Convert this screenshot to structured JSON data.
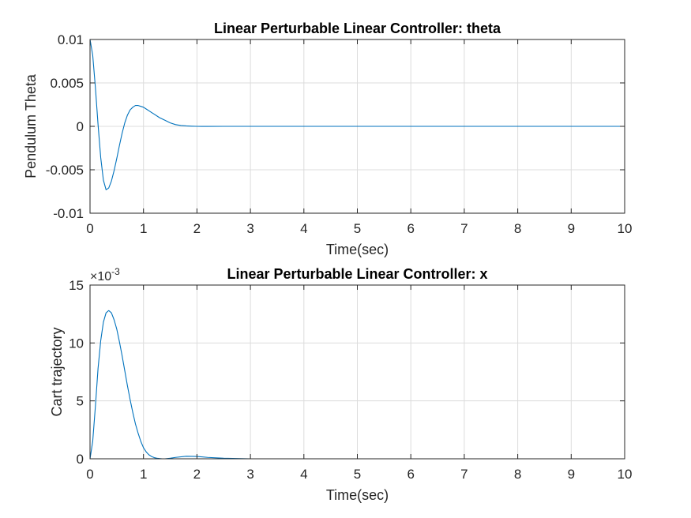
{
  "chart_data": [
    {
      "type": "line",
      "title": "Linear Perturbable Linear Controller: theta",
      "xlabel": "Time(sec)",
      "ylabel": "Pendulum Theta",
      "xlim": [
        0,
        10
      ],
      "ylim": [
        -0.01,
        0.01
      ],
      "xticks": [
        0,
        1,
        2,
        3,
        4,
        5,
        6,
        7,
        8,
        9,
        10
      ],
      "xtick_labels": [
        "0",
        "1",
        "2",
        "3",
        "4",
        "5",
        "6",
        "7",
        "8",
        "9",
        "10"
      ],
      "yticks": [
        -0.01,
        -0.005,
        0,
        0.005,
        0.01
      ],
      "ytick_labels": [
        "-0.01",
        "-0.005",
        "0",
        "0.005",
        "0.01"
      ],
      "exponent_label": "",
      "grid": true,
      "color": "#0072BD",
      "series": [
        {
          "x": [
            0,
            0.05,
            0.1,
            0.15,
            0.2,
            0.25,
            0.3,
            0.35,
            0.4,
            0.45,
            0.5,
            0.55,
            0.6,
            0.65,
            0.7,
            0.75,
            0.8,
            0.85,
            0.9,
            0.95,
            1.0,
            1.05,
            1.1,
            1.15,
            1.2,
            1.3,
            1.4,
            1.5,
            1.6,
            1.7,
            1.8,
            1.9,
            2.0,
            2.2,
            2.5,
            3,
            4,
            5,
            6,
            7,
            8,
            9,
            10
          ],
          "y": [
            0.01,
            0.0082,
            0.0045,
            0.0002,
            -0.0036,
            -0.0062,
            -0.0073,
            -0.0071,
            -0.0063,
            -0.0051,
            -0.0037,
            -0.0022,
            -0.0008,
            0.0004,
            0.0013,
            0.0019,
            0.0022,
            0.0024,
            0.0024,
            0.0023,
            0.0022,
            0.002,
            0.0018,
            0.0016,
            0.0014,
            0.001,
            0.0007,
            0.0004,
            0.0002,
            0.0001,
            5e-05,
            2e-05,
            0.0,
            -1e-05,
            0.0,
            0.0,
            0.0,
            0.0,
            0.0,
            0.0,
            0.0,
            0.0,
            0.0
          ]
        }
      ]
    },
    {
      "type": "line",
      "title": "Linear Perturbable Linear Controller: x",
      "xlabel": "Time(sec)",
      "ylabel": "Cart trajectory",
      "xlim": [
        0,
        10
      ],
      "ylim": [
        0,
        15
      ],
      "xticks": [
        0,
        1,
        2,
        3,
        4,
        5,
        6,
        7,
        8,
        9,
        10
      ],
      "xtick_labels": [
        "0",
        "1",
        "2",
        "3",
        "4",
        "5",
        "6",
        "7",
        "8",
        "9",
        "10"
      ],
      "yticks": [
        0,
        5,
        10,
        15
      ],
      "ytick_labels": [
        "0",
        "5",
        "10",
        "15"
      ],
      "exponent_label": "×10",
      "exponent_power": "-3",
      "grid": true,
      "color": "#0072BD",
      "series": [
        {
          "x": [
            0,
            0.05,
            0.1,
            0.15,
            0.2,
            0.25,
            0.3,
            0.35,
            0.4,
            0.45,
            0.5,
            0.55,
            0.6,
            0.65,
            0.7,
            0.75,
            0.8,
            0.85,
            0.9,
            0.95,
            1.0,
            1.05,
            1.1,
            1.15,
            1.2,
            1.25,
            1.3,
            1.35,
            1.4,
            1.5,
            1.6,
            1.8,
            2.0,
            2.2,
            2.5,
            3,
            4,
            5,
            6,
            7,
            8,
            9,
            10
          ],
          "y": [
            0,
            1.5,
            4.5,
            7.8,
            10.2,
            11.8,
            12.6,
            12.8,
            12.6,
            12.0,
            11.2,
            10.1,
            8.9,
            7.6,
            6.3,
            5.1,
            4.0,
            3.0,
            2.2,
            1.5,
            0.95,
            0.6,
            0.35,
            0.2,
            0.1,
            0.05,
            0.02,
            0.0,
            0.0,
            0.05,
            0.12,
            0.22,
            0.2,
            0.12,
            0.05,
            0.0,
            0.0,
            0.0,
            0.0,
            0.0,
            0.0,
            0.0,
            0.0
          ]
        }
      ]
    }
  ]
}
